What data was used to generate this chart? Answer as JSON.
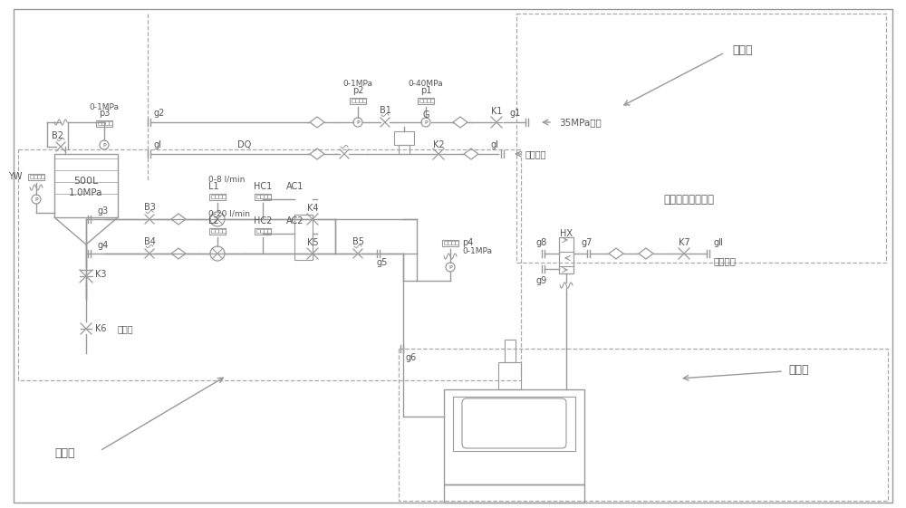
{
  "bg_color": "#ffffff",
  "lc": "#999999",
  "tc": "#555555",
  "dc": "#aaaaaa",
  "lw": 1.0,
  "fig_w": 10.0,
  "fig_h": 5.61,
  "labels": {
    "ce_kong_tai": "测控台",
    "qi_gang": "气缸控制气源系统",
    "ye_ya": "液压源",
    "zhuang_ka": "装卡台",
    "jie_lai": "接自来水",
    "jie_xia": "接下水",
    "qi_35": "35MPa气源",
    "di_ya": "低压气源",
    "p3": "p3",
    "p3r": "0-1MPa",
    "p2": "p2",
    "p2r": "0-1MPa",
    "p1": "p1",
    "p1r": "0-40MPa",
    "p4": "p4",
    "p4r": "0-1MPa",
    "g1": "g1",
    "g2": "g2",
    "gI": "gI",
    "g3": "g3",
    "g4": "g4",
    "g5": "g5",
    "g6": "g6",
    "g7": "g7",
    "g8": "g8",
    "g9": "g9",
    "gII": "gⅡ",
    "B1": "B1",
    "B2": "B2",
    "B3": "B3",
    "B4": "B4",
    "B5": "B5",
    "G": "G",
    "K1": "K1",
    "K2": "K2",
    "K3": "K3",
    "K4": "K4",
    "K5": "K5",
    "K6": "K6",
    "K7": "K7",
    "HX": "HX",
    "DQ": "DQ",
    "YW": "YW",
    "L1": "L1",
    "L1r": "0-8 l/min",
    "L2": "L2",
    "L2r": "0-20 l/min",
    "HC1": "HC1",
    "HC2": "HC2",
    "AC1": "AC1",
    "AC2": "AC2",
    "tank_v": "500L",
    "tank_p": "1.0MPa"
  }
}
